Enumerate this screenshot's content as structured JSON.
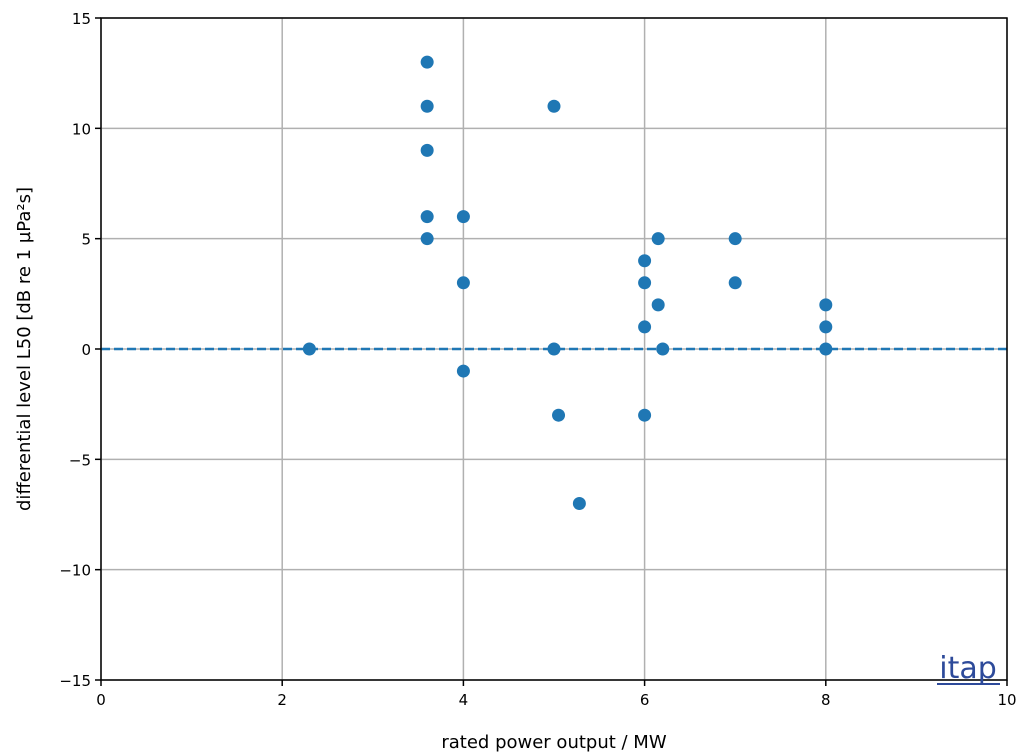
{
  "chart_data": {
    "type": "scatter",
    "xlabel": "rated power output / MW",
    "ylabel": "differential level L50 [dB re 1 µPa²s]",
    "xlim": [
      0,
      10
    ],
    "ylim": [
      -15,
      15
    ],
    "xticks": [
      0,
      2,
      4,
      6,
      8,
      10
    ],
    "yticks": [
      -15,
      -10,
      -5,
      0,
      5,
      10,
      15
    ],
    "xtick_labels": [
      "0",
      "2",
      "4",
      "6",
      "8",
      "10"
    ],
    "ytick_labels": [
      "−15",
      "−10",
      "−5",
      "0",
      "5",
      "10",
      "15"
    ],
    "grid": true,
    "reference_line": {
      "y": 0,
      "style": "dashed"
    },
    "point_color": "#1f77b4",
    "series": [
      {
        "points": [
          {
            "x": 2.3,
            "y": 0
          },
          {
            "x": 3.6,
            "y": 13
          },
          {
            "x": 3.6,
            "y": 11
          },
          {
            "x": 3.6,
            "y": 9
          },
          {
            "x": 3.6,
            "y": 6
          },
          {
            "x": 3.6,
            "y": 5
          },
          {
            "x": 4.0,
            "y": 6
          },
          {
            "x": 4.0,
            "y": 3
          },
          {
            "x": 4.0,
            "y": -1
          },
          {
            "x": 5.0,
            "y": 11
          },
          {
            "x": 5.0,
            "y": 0
          },
          {
            "x": 5.05,
            "y": -3
          },
          {
            "x": 5.28,
            "y": -7
          },
          {
            "x": 6.0,
            "y": 4
          },
          {
            "x": 6.0,
            "y": 3
          },
          {
            "x": 6.0,
            "y": 1
          },
          {
            "x": 6.0,
            "y": -3
          },
          {
            "x": 6.15,
            "y": 5
          },
          {
            "x": 6.15,
            "y": 2
          },
          {
            "x": 6.2,
            "y": 0
          },
          {
            "x": 7.0,
            "y": 5
          },
          {
            "x": 7.0,
            "y": 3
          },
          {
            "x": 8.0,
            "y": 2
          },
          {
            "x": 8.0,
            "y": 1
          },
          {
            "x": 8.0,
            "y": 0
          }
        ]
      }
    ],
    "watermark": "itap"
  }
}
